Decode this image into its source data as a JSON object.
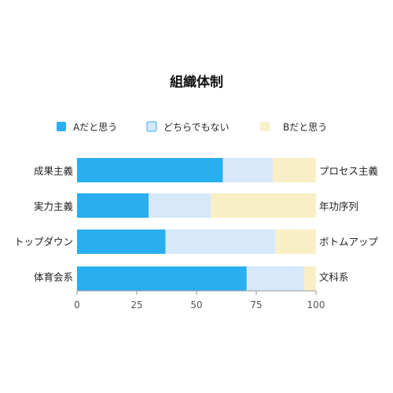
{
  "chart_data": {
    "type": "bar",
    "orientation": "horizontal",
    "stacked": true,
    "title": "組織体制",
    "categories_left": [
      "成果主義",
      "実力主義",
      "トップダウン",
      "体育会系"
    ],
    "categories_right": [
      "プロセス主義",
      "年功序列",
      "ボトムアップ",
      "文科系"
    ],
    "series": [
      {
        "name": "Aだと思う",
        "values": [
          61,
          30,
          37,
          71
        ],
        "color": "#29aef0"
      },
      {
        "name": "どちらでもない",
        "values": [
          21,
          26,
          46,
          24
        ],
        "color": "#d6e8fa"
      },
      {
        "name": "Bだと思う",
        "values": [
          18,
          44,
          17,
          5
        ],
        "color": "#f9efc6"
      }
    ],
    "xlim": [
      0,
      100
    ],
    "xticks": [
      0,
      25,
      50,
      75,
      100
    ],
    "legend_position": "top",
    "grid": false
  },
  "colors": {
    "axis": "#999999"
  }
}
